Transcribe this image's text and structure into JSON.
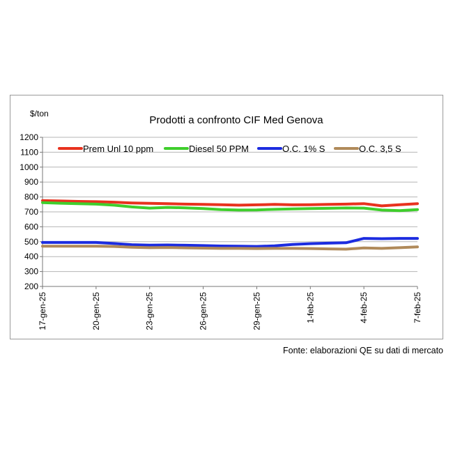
{
  "chart_data": {
    "type": "line",
    "title": "Prodotti a confronto CIF Med Genova",
    "ylabel": "$/ton",
    "xlabel": "",
    "ylim": [
      200,
      1200
    ],
    "yticks": [
      200,
      300,
      400,
      500,
      600,
      700,
      800,
      900,
      1000,
      1100,
      1200
    ],
    "grid": "horizontal",
    "legend_position": "top",
    "x": [
      "17-gen-25",
      "18-gen-25",
      "19-gen-25",
      "20-gen-25",
      "21-gen-25",
      "22-gen-25",
      "23-gen-25",
      "24-gen-25",
      "25-gen-25",
      "26-gen-25",
      "27-gen-25",
      "28-gen-25",
      "29-gen-25",
      "30-gen-25",
      "31-gen-25",
      "1-feb-25",
      "2-feb-25",
      "3-feb-25",
      "4-feb-25",
      "5-feb-25",
      "6-feb-25",
      "7-feb-25"
    ],
    "xticks": [
      "17-gen-25",
      "20-gen-25",
      "23-gen-25",
      "26-gen-25",
      "29-gen-25",
      "1-feb-25",
      "4-feb-25",
      "7-feb-25"
    ],
    "series": [
      {
        "name": "Prem Unl 10 ppm",
        "color": "#e8321e",
        "values": [
          775,
          773,
          770,
          768,
          765,
          760,
          757,
          755,
          752,
          750,
          748,
          745,
          747,
          750,
          747,
          748,
          750,
          752,
          755,
          740,
          748,
          755
        ]
      },
      {
        "name": "Diesel 50 PPM",
        "color": "#3fce2c",
        "values": [
          762,
          758,
          755,
          752,
          745,
          733,
          725,
          730,
          727,
          722,
          715,
          712,
          713,
          717,
          720,
          722,
          724,
          726,
          725,
          712,
          708,
          715
        ]
      },
      {
        "name": "O.C. 1% S",
        "color": "#1c2ce0",
        "values": [
          495,
          495,
          495,
          495,
          488,
          480,
          477,
          478,
          476,
          474,
          471,
          470,
          468,
          472,
          482,
          487,
          490,
          493,
          522,
          520,
          522,
          522
        ]
      },
      {
        "name": "O.C. 3,5 S",
        "color": "#b08a5a",
        "values": [
          470,
          470,
          470,
          470,
          468,
          463,
          460,
          461,
          459,
          457,
          455,
          455,
          454,
          455,
          455,
          454,
          452,
          450,
          458,
          455,
          460,
          465
        ]
      }
    ]
  },
  "source_note": "Fonte: elaborazioni QE su dati di mercato"
}
